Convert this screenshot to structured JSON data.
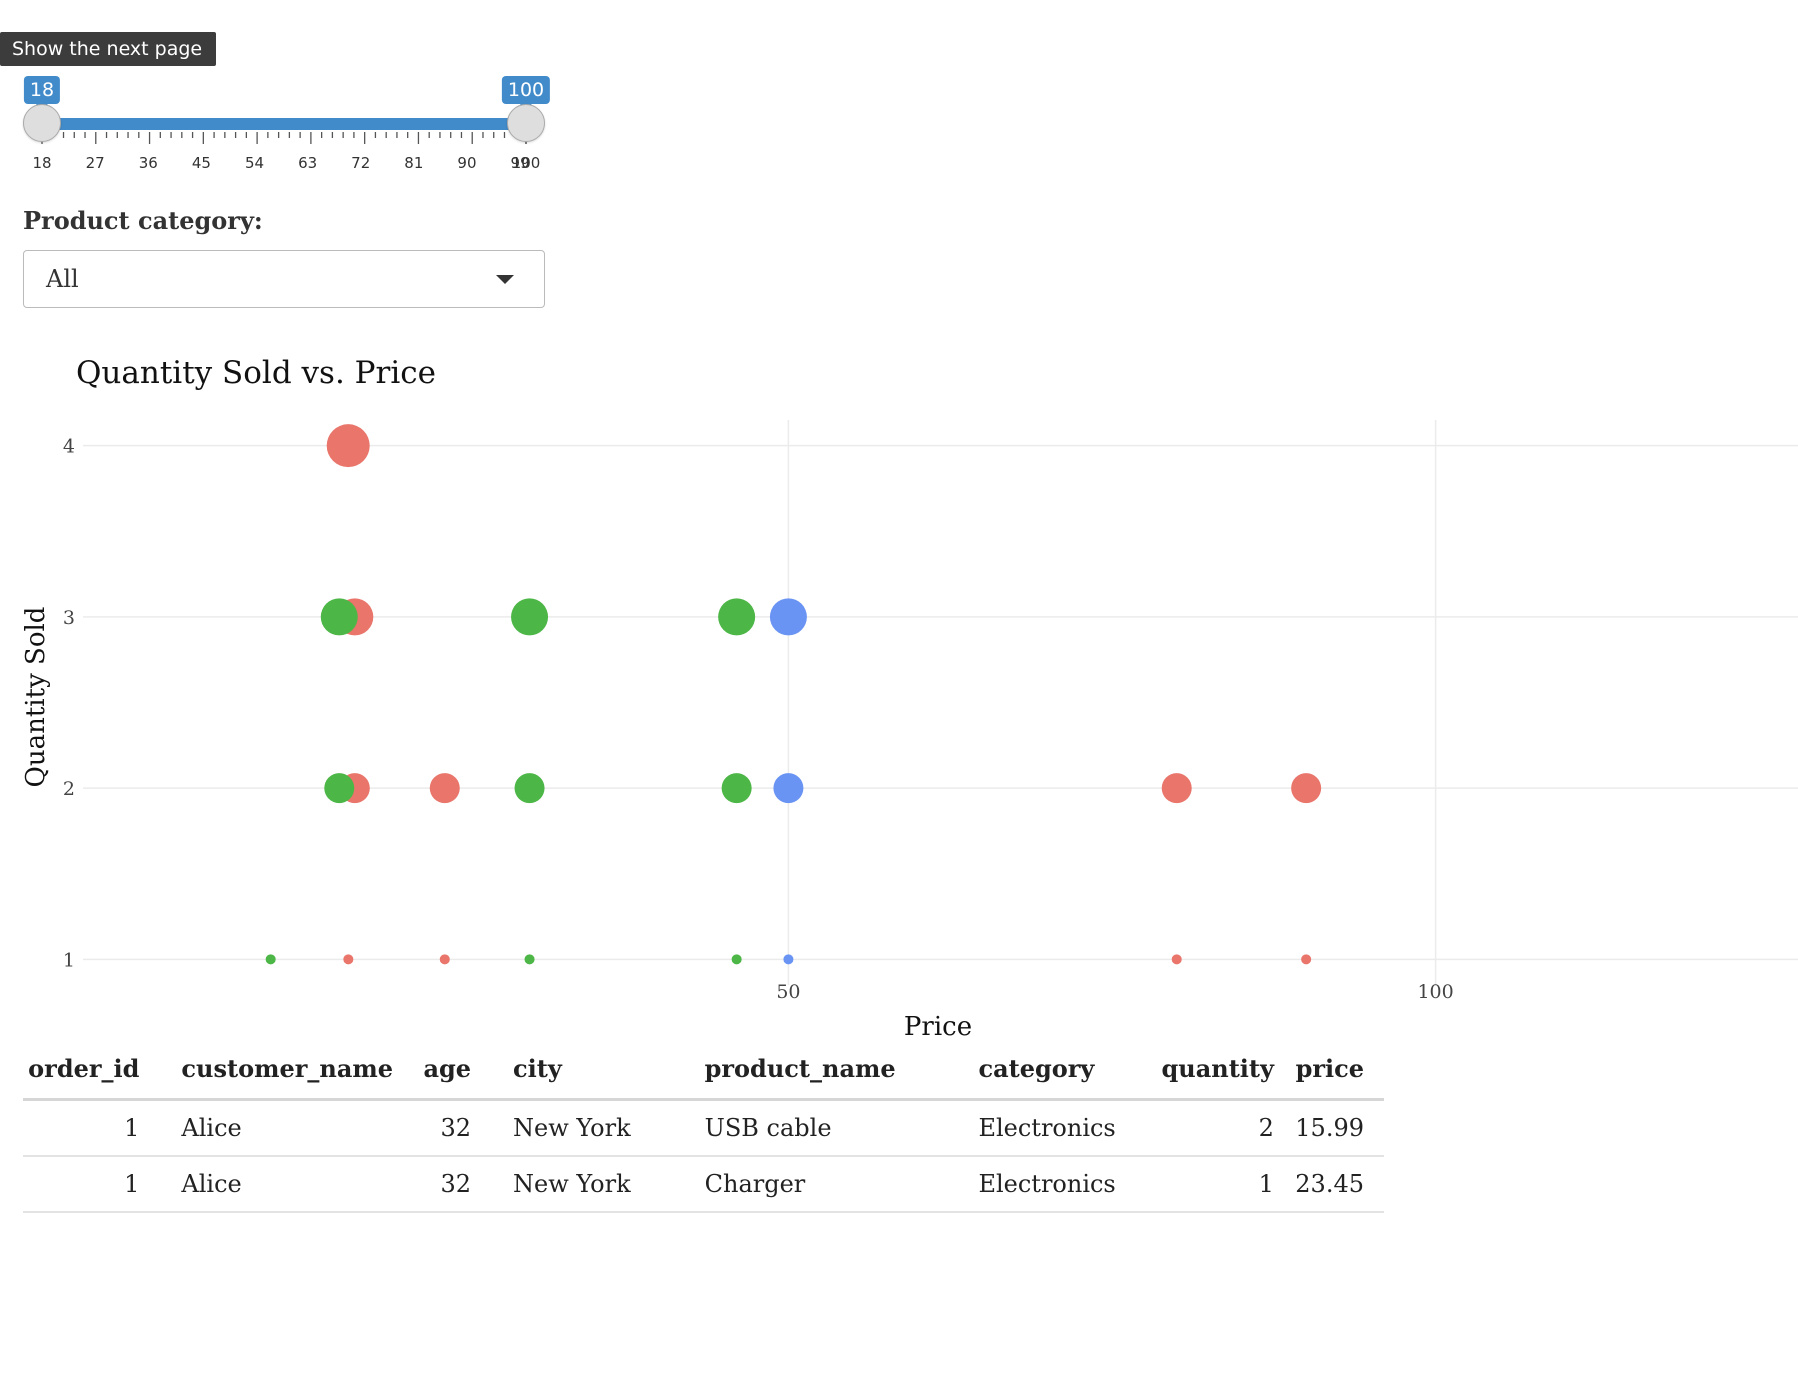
{
  "tooltip": {
    "text": "Show the next page"
  },
  "age_slider": {
    "min": 18,
    "max": 100,
    "value_low": 18,
    "value_high": 100,
    "major_ticks": [
      "18",
      "27",
      "36",
      "45",
      "54",
      "63",
      "72",
      "81",
      "90",
      "99",
      "100"
    ],
    "accent_color": "#428bca"
  },
  "category_filter": {
    "label": "Product category:",
    "selected": "All"
  },
  "chart_data": {
    "type": "scatter",
    "title": "Quantity Sold vs. Price",
    "xlabel": "Price",
    "ylabel": "Quantity Sold",
    "xlim": [
      -4.5,
      128
    ],
    "ylim": [
      0.85,
      4.15
    ],
    "xticks": [
      50,
      100
    ],
    "yticks": [
      1,
      2,
      3,
      4
    ],
    "grid": true,
    "legend": "none",
    "series": [
      {
        "color": "#e9756b",
        "points": [
          {
            "x": 15.99,
            "y": 4
          },
          {
            "x": 16.5,
            "y": 3
          },
          {
            "x": 16.5,
            "y": 2
          },
          {
            "x": 23.45,
            "y": 2
          },
          {
            "x": 80,
            "y": 2
          },
          {
            "x": 90,
            "y": 2
          },
          {
            "x": 16,
            "y": 1
          },
          {
            "x": 23.45,
            "y": 1
          },
          {
            "x": 80,
            "y": 1
          },
          {
            "x": 90,
            "y": 1
          }
        ]
      },
      {
        "color": "#4cb646",
        "points": [
          {
            "x": 15.3,
            "y": 3
          },
          {
            "x": 30,
            "y": 3
          },
          {
            "x": 46,
            "y": 3
          },
          {
            "x": 15.3,
            "y": 2
          },
          {
            "x": 30,
            "y": 2
          },
          {
            "x": 46,
            "y": 2
          },
          {
            "x": 10,
            "y": 1
          },
          {
            "x": 30,
            "y": 1
          },
          {
            "x": 46,
            "y": 1
          }
        ]
      },
      {
        "color": "#6a94f3",
        "points": [
          {
            "x": 50,
            "y": 3
          },
          {
            "x": 50,
            "y": 2
          },
          {
            "x": 50,
            "y": 1
          }
        ]
      }
    ]
  },
  "table": {
    "columns": [
      "order_id",
      "customer_name",
      "age",
      "city",
      "product_name",
      "category",
      "quantity",
      "price"
    ],
    "rows": [
      [
        "1",
        "Alice",
        "32",
        "New York",
        "USB cable",
        "Electronics",
        "2",
        "15.99"
      ],
      [
        "1",
        "Alice",
        "32",
        "New York",
        "Charger",
        "Electronics",
        "1",
        "23.45"
      ]
    ]
  }
}
